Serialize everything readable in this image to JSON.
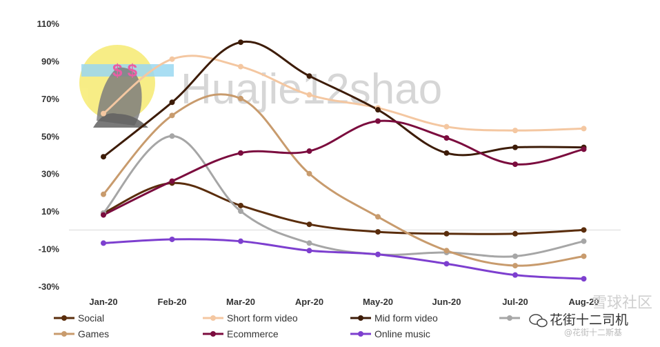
{
  "chart_data": {
    "type": "line",
    "categories": [
      "Jan-20",
      "Feb-20",
      "Mar-20",
      "Apr-20",
      "May-20",
      "Jun-20",
      "Jul-20",
      "Aug-20"
    ],
    "ylim": [
      -30,
      110
    ],
    "yticks": [
      "110%",
      "90%",
      "70%",
      "50%",
      "30%",
      "10%",
      "-10%",
      "-30%"
    ],
    "y_values_ticks": [
      110,
      90,
      70,
      50,
      30,
      10,
      -10,
      -30
    ],
    "grid": false,
    "legend_position": "bottom",
    "series": [
      {
        "name": "Social",
        "color": "#5a2d0c",
        "values": [
          9,
          25,
          13,
          3,
          -1,
          -2,
          -2,
          0
        ]
      },
      {
        "name": "Short form video",
        "color": "#f4c7a1",
        "values": [
          62,
          91,
          87,
          72,
          65,
          55,
          53,
          54
        ]
      },
      {
        "name": "Mid form video",
        "color": "#3d1c08",
        "values": [
          39,
          68,
          100,
          82,
          64,
          41,
          44,
          44
        ]
      },
      {
        "name": "",
        "color": "#a6a6a6",
        "values": [
          9,
          50,
          10,
          -7,
          -13,
          -12,
          -14,
          -6
        ]
      },
      {
        "name": "Games",
        "color": "#c89b6d",
        "values": [
          19,
          61,
          70,
          30,
          7,
          -11,
          -19,
          -14
        ]
      },
      {
        "name": "Ecommerce",
        "color": "#7b0c3e",
        "values": [
          8,
          26,
          41,
          42,
          58,
          49,
          35,
          43
        ]
      },
      {
        "name": "Online music",
        "color": "#7d3fcf",
        "values": [
          -7,
          -5,
          -6,
          -11,
          -13,
          -18,
          -24,
          -26
        ]
      }
    ]
  },
  "watermark": {
    "text": "Huajie12shao",
    "bottom_line1": "花街十二司机",
    "bottom_line2": "@花街十二斯基",
    "top_right": "雪球社区"
  },
  "avatar": {
    "symbols": "$ $"
  }
}
